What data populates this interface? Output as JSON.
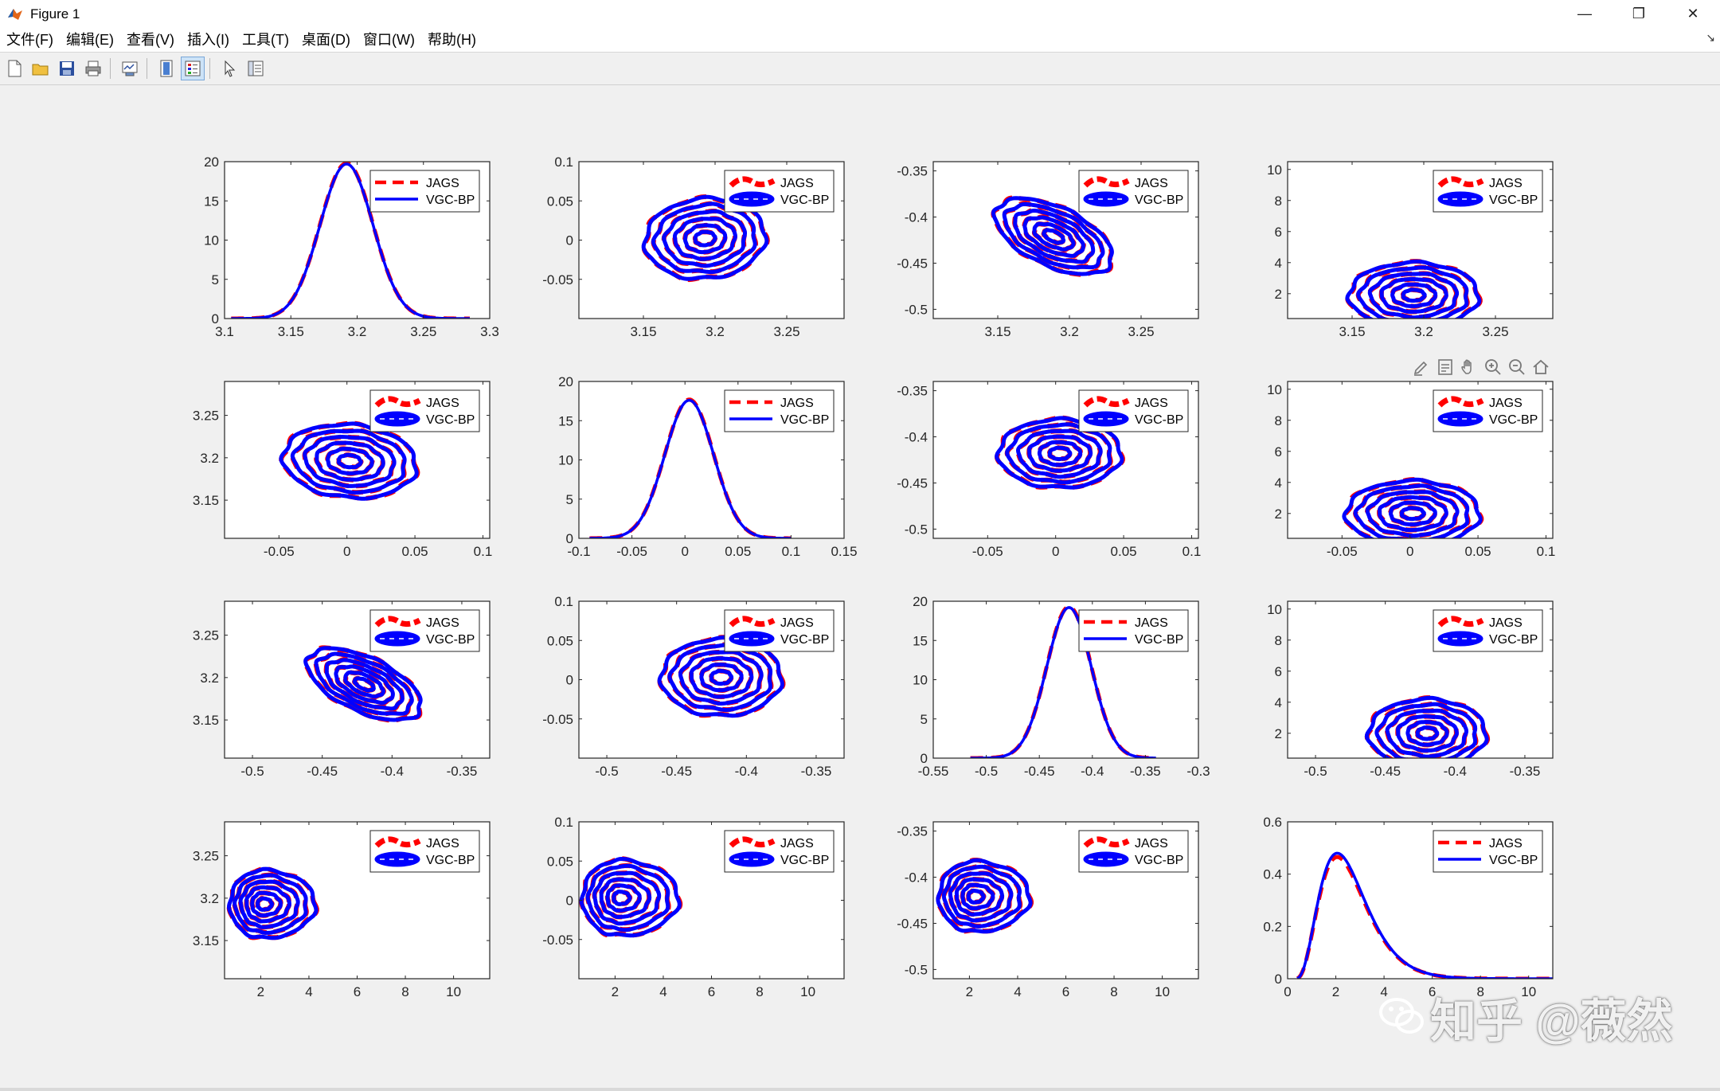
{
  "window": {
    "title": "Figure 1",
    "minimize_glyph": "—",
    "maximize_glyph": "❐",
    "close_glyph": "✕"
  },
  "menu": {
    "items": [
      "文件(F)",
      "编辑(E)",
      "查看(V)",
      "插入(I)",
      "工具(T)",
      "桌面(D)",
      "窗口(W)",
      "帮助(H)"
    ],
    "dock_glyph": "↘"
  },
  "toolbar": {
    "buttons": [
      "new-figure-icon",
      "open-file-icon",
      "save-icon",
      "print-icon",
      "link-plot-icon",
      "colorbar-icon",
      "legend-icon",
      "pointer-icon",
      "property-inspector-icon"
    ]
  },
  "axes_toolbar": {
    "buttons": [
      "brush-icon",
      "datatip-icon",
      "pan-icon",
      "zoom-in-icon",
      "zoom-out-icon",
      "home-icon"
    ]
  },
  "watermark": {
    "text": "知乎 @薇然"
  },
  "colors": {
    "jags": "#ff0000",
    "vgc_bp": "#0000ff",
    "axes_bg": "#ffffff",
    "figure_bg": "#f0f0f0"
  },
  "chart_data": [
    {
      "type": "line",
      "title": "",
      "xlabel": "",
      "ylabel": "",
      "xlim": [
        3.1,
        3.3
      ],
      "ylim": [
        0,
        20
      ],
      "xticks": [
        3.1,
        3.15,
        3.2,
        3.25,
        3.3
      ],
      "yticks": [
        0,
        5,
        10,
        15,
        20
      ],
      "xticklabels": [
        "3.1",
        "3.15",
        "3.2",
        "3.25",
        "3.3"
      ],
      "yticklabels": [
        "0",
        "5",
        "10",
        "15",
        "20"
      ],
      "density": {
        "mean": 3.192,
        "sd": 0.02,
        "peak": 19.7,
        "x_range": [
          3.105,
          3.285
        ]
      },
      "legend": {
        "location": "top-right",
        "style": "line",
        "entries": [
          "JAGS",
          "VGC-BP"
        ]
      },
      "series": [
        {
          "name": "JAGS",
          "style": "dashed"
        },
        {
          "name": "VGC-BP",
          "style": "solid"
        }
      ]
    },
    {
      "type": "line",
      "title": "",
      "xlabel": "",
      "ylabel": "",
      "xlim": [
        3.105,
        3.29
      ],
      "ylim": [
        -0.1,
        0.1
      ],
      "xticks": [
        3.15,
        3.2,
        3.25
      ],
      "yticks": [
        -0.05,
        0,
        0.05,
        0.1
      ],
      "xticklabels": [
        "3.15",
        "3.2",
        "3.25"
      ],
      "yticklabels": [
        "-0.05",
        "0",
        "0.05",
        "0.1"
      ],
      "contour": {
        "center": [
          3.193,
          0.002
        ],
        "radii": [
          0.042,
          0.051
        ],
        "angle_deg": -5,
        "levels": 6
      },
      "legend": {
        "location": "top-right",
        "style": "contour",
        "entries": [
          "JAGS",
          "VGC-BP"
        ]
      },
      "series": [
        {
          "name": "JAGS",
          "style": "dashed"
        },
        {
          "name": "VGC-BP",
          "style": "solid"
        }
      ]
    },
    {
      "type": "line",
      "title": "",
      "xlabel": "",
      "ylabel": "",
      "xlim": [
        3.105,
        3.29
      ],
      "ylim": [
        -0.51,
        -0.34
      ],
      "xticks": [
        3.15,
        3.2,
        3.25
      ],
      "yticks": [
        -0.35,
        -0.4,
        -0.45,
        -0.5
      ],
      "xticklabels": [
        "3.15",
        "3.2",
        "3.25"
      ],
      "yticklabels": [
        "-0.35",
        "-0.4",
        "-0.45",
        "-0.5"
      ],
      "contour": {
        "center": [
          3.189,
          -0.421
        ],
        "radii": [
          0.044,
          0.032
        ],
        "angle_deg": 25,
        "levels": 6
      },
      "legend": {
        "location": "top-right",
        "style": "contour",
        "entries": [
          "JAGS",
          "VGC-BP"
        ]
      },
      "series": [
        {
          "name": "JAGS",
          "style": "dashed"
        },
        {
          "name": "VGC-BP",
          "style": "solid"
        }
      ]
    },
    {
      "type": "line",
      "title": "",
      "xlabel": "",
      "ylabel": "",
      "xlim": [
        3.105,
        3.29
      ],
      "ylim": [
        0.4,
        10.5
      ],
      "xticks": [
        3.15,
        3.2,
        3.25
      ],
      "yticks": [
        2,
        4,
        6,
        8,
        10
      ],
      "xticklabels": [
        "3.15",
        "3.2",
        "3.25"
      ],
      "yticklabels": [
        "2",
        "4",
        "6",
        "8",
        "10"
      ],
      "contour": {
        "center": [
          3.193,
          1.9
        ],
        "radii": [
          0.045,
          2.1
        ],
        "angle_deg": 0,
        "levels": 6
      },
      "legend": {
        "location": "top-right",
        "style": "contour",
        "entries": [
          "JAGS",
          "VGC-BP"
        ]
      },
      "series": [
        {
          "name": "JAGS",
          "style": "dashed"
        },
        {
          "name": "VGC-BP",
          "style": "solid"
        }
      ]
    },
    {
      "type": "line",
      "title": "",
      "xlabel": "",
      "ylabel": "",
      "xlim": [
        -0.09,
        0.105
      ],
      "ylim": [
        3.105,
        3.29
      ],
      "xticks": [
        -0.05,
        0,
        0.05,
        0.1
      ],
      "yticks": [
        3.15,
        3.2,
        3.25
      ],
      "xticklabels": [
        "-0.05",
        "0",
        "0.05",
        "0.1"
      ],
      "yticklabels": [
        "3.15",
        "3.2",
        "3.25"
      ],
      "contour": {
        "center": [
          0.002,
          3.196
        ],
        "radii": [
          0.049,
          0.043
        ],
        "angle_deg": 5,
        "levels": 6
      },
      "legend": {
        "location": "top-right",
        "style": "contour",
        "entries": [
          "JAGS",
          "VGC-BP"
        ]
      },
      "series": [
        {
          "name": "JAGS",
          "style": "dashed"
        },
        {
          "name": "VGC-BP",
          "style": "solid"
        }
      ]
    },
    {
      "type": "line",
      "title": "",
      "xlabel": "",
      "ylabel": "",
      "xlim": [
        -0.1,
        0.15
      ],
      "ylim": [
        0,
        20
      ],
      "xticks": [
        -0.1,
        -0.05,
        0,
        0.05,
        0.1,
        0.15
      ],
      "yticks": [
        0,
        5,
        10,
        15,
        20
      ],
      "xticklabels": [
        "-0.1",
        "-0.05",
        "0",
        "0.05",
        "0.1",
        "0.15"
      ],
      "yticklabels": [
        "0",
        "5",
        "10",
        "15",
        "20"
      ],
      "density": {
        "mean": 0.004,
        "sd": 0.023,
        "peak": 17.6,
        "x_range": [
          -0.09,
          0.1
        ]
      },
      "legend": {
        "location": "top-right",
        "style": "line",
        "entries": [
          "JAGS",
          "VGC-BP"
        ]
      },
      "series": [
        {
          "name": "JAGS",
          "style": "dashed"
        },
        {
          "name": "VGC-BP",
          "style": "solid"
        }
      ]
    },
    {
      "type": "line",
      "title": "",
      "xlabel": "",
      "ylabel": "",
      "xlim": [
        -0.09,
        0.105
      ],
      "ylim": [
        -0.51,
        -0.34
      ],
      "xticks": [
        -0.05,
        0,
        0.05,
        0.1
      ],
      "yticks": [
        -0.35,
        -0.4,
        -0.45,
        -0.5
      ],
      "xticklabels": [
        "-0.05",
        "0",
        "0.05",
        "0.1"
      ],
      "yticklabels": [
        "-0.35",
        "-0.4",
        "-0.45",
        "-0.5"
      ],
      "contour": {
        "center": [
          0.003,
          -0.418
        ],
        "radii": [
          0.045,
          0.037
        ],
        "angle_deg": 0,
        "levels": 6
      },
      "legend": {
        "location": "top-right",
        "style": "contour",
        "entries": [
          "JAGS",
          "VGC-BP"
        ]
      },
      "series": [
        {
          "name": "JAGS",
          "style": "dashed"
        },
        {
          "name": "VGC-BP",
          "style": "solid"
        }
      ]
    },
    {
      "type": "line",
      "title": "",
      "xlabel": "",
      "ylabel": "",
      "xlim": [
        -0.09,
        0.105
      ],
      "ylim": [
        0.4,
        10.5
      ],
      "xticks": [
        -0.05,
        0,
        0.05,
        0.1
      ],
      "yticks": [
        2,
        4,
        6,
        8,
        10
      ],
      "xticklabels": [
        "-0.05",
        "0",
        "0.05",
        "0.1"
      ],
      "yticklabels": [
        "2",
        "4",
        "6",
        "8",
        "10"
      ],
      "contour": {
        "center": [
          0.002,
          2.0
        ],
        "radii": [
          0.049,
          2.1
        ],
        "angle_deg": 0,
        "levels": 6
      },
      "legend": {
        "location": "top-right",
        "style": "contour",
        "entries": [
          "JAGS",
          "VGC-BP"
        ]
      },
      "series": [
        {
          "name": "JAGS",
          "style": "dashed"
        },
        {
          "name": "VGC-BP",
          "style": "solid"
        }
      ]
    },
    {
      "type": "line",
      "title": "",
      "xlabel": "",
      "ylabel": "",
      "xlim": [
        -0.52,
        -0.33
      ],
      "ylim": [
        3.105,
        3.29
      ],
      "xticks": [
        -0.5,
        -0.45,
        -0.4,
        -0.35
      ],
      "yticks": [
        3.15,
        3.2,
        3.25
      ],
      "xticklabels": [
        "-0.5",
        "-0.45",
        "-0.4",
        "-0.35"
      ],
      "yticklabels": [
        "3.15",
        "3.2",
        "3.25"
      ],
      "contour": {
        "center": [
          -0.42,
          3.192
        ],
        "radii": [
          0.044,
          0.032
        ],
        "angle_deg": 25,
        "levels": 6
      },
      "legend": {
        "location": "top-right",
        "style": "contour",
        "entries": [
          "JAGS",
          "VGC-BP"
        ]
      },
      "series": [
        {
          "name": "JAGS",
          "style": "dashed"
        },
        {
          "name": "VGC-BP",
          "style": "solid"
        }
      ]
    },
    {
      "type": "line",
      "title": "",
      "xlabel": "",
      "ylabel": "",
      "xlim": [
        -0.52,
        -0.33
      ],
      "ylim": [
        -0.1,
        0.1
      ],
      "xticks": [
        -0.5,
        -0.45,
        -0.4,
        -0.35
      ],
      "yticks": [
        -0.05,
        0,
        0.05,
        0.1
      ],
      "xticklabels": [
        "-0.5",
        "-0.45",
        "-0.4",
        "-0.35"
      ],
      "yticklabels": [
        "-0.05",
        "0",
        "0.05",
        "0.1"
      ],
      "contour": {
        "center": [
          -0.418,
          0.003
        ],
        "radii": [
          0.043,
          0.049
        ],
        "angle_deg": 0,
        "levels": 6
      },
      "legend": {
        "location": "top-right",
        "style": "contour",
        "entries": [
          "JAGS",
          "VGC-BP"
        ]
      },
      "series": [
        {
          "name": "JAGS",
          "style": "dashed"
        },
        {
          "name": "VGC-BP",
          "style": "solid"
        }
      ]
    },
    {
      "type": "line",
      "title": "",
      "xlabel": "",
      "ylabel": "",
      "xlim": [
        -0.55,
        -0.3
      ],
      "ylim": [
        0,
        20
      ],
      "xticks": [
        -0.55,
        -0.5,
        -0.45,
        -0.4,
        -0.35,
        -0.3
      ],
      "yticks": [
        0,
        5,
        10,
        15,
        20
      ],
      "xticklabels": [
        "-0.55",
        "-0.5",
        "-0.45",
        "-0.4",
        "-0.35",
        "-0.3"
      ],
      "yticklabels": [
        "0",
        "5",
        "10",
        "15",
        "20"
      ],
      "density": {
        "mean": -0.422,
        "sd": 0.021,
        "peak": 19.2,
        "x_range": [
          -0.515,
          -0.34
        ]
      },
      "legend": {
        "location": "top-right",
        "style": "line",
        "entries": [
          "JAGS",
          "VGC-BP"
        ]
      },
      "series": [
        {
          "name": "JAGS",
          "style": "dashed"
        },
        {
          "name": "VGC-BP",
          "style": "solid"
        }
      ]
    },
    {
      "type": "line",
      "title": "",
      "xlabel": "",
      "ylabel": "",
      "xlim": [
        -0.52,
        -0.33
      ],
      "ylim": [
        0.4,
        10.5
      ],
      "xticks": [
        -0.5,
        -0.45,
        -0.4,
        -0.35
      ],
      "yticks": [
        2,
        4,
        6,
        8,
        10
      ],
      "xticklabels": [
        "-0.5",
        "-0.45",
        "-0.4",
        "-0.35"
      ],
      "yticklabels": [
        "2",
        "4",
        "6",
        "8",
        "10"
      ],
      "contour": {
        "center": [
          -0.42,
          2.0
        ],
        "radii": [
          0.042,
          2.2
        ],
        "angle_deg": 0,
        "levels": 6
      },
      "legend": {
        "location": "top-right",
        "style": "contour",
        "entries": [
          "JAGS",
          "VGC-BP"
        ]
      },
      "series": [
        {
          "name": "JAGS",
          "style": "dashed"
        },
        {
          "name": "VGC-BP",
          "style": "solid"
        }
      ]
    },
    {
      "type": "line",
      "title": "",
      "xlabel": "",
      "ylabel": "",
      "xlim": [
        0.5,
        11.5
      ],
      "ylim": [
        3.105,
        3.29
      ],
      "xticks": [
        2,
        4,
        6,
        8,
        10
      ],
      "yticks": [
        3.15,
        3.2,
        3.25
      ],
      "xticklabels": [
        "2",
        "4",
        "6",
        "8",
        "10"
      ],
      "yticklabels": [
        "3.15",
        "3.2",
        "3.25"
      ],
      "contour": {
        "center": [
          2.1,
          3.193
        ],
        "radii": [
          1.6,
          0.04
        ],
        "angle_deg": 0,
        "levels": 6,
        "skew": 0.35
      },
      "legend": {
        "location": "top-right",
        "style": "contour",
        "entries": [
          "JAGS",
          "VGC-BP"
        ]
      },
      "series": [
        {
          "name": "JAGS",
          "style": "dashed"
        },
        {
          "name": "VGC-BP",
          "style": "solid"
        }
      ]
    },
    {
      "type": "line",
      "title": "",
      "xlabel": "",
      "ylabel": "",
      "xlim": [
        0.5,
        11.5
      ],
      "ylim": [
        -0.1,
        0.1
      ],
      "xticks": [
        2,
        4,
        6,
        8,
        10
      ],
      "yticks": [
        -0.05,
        0,
        0.05,
        0.1
      ],
      "xticklabels": [
        "2",
        "4",
        "6",
        "8",
        "10"
      ],
      "yticklabels": [
        "-0.05",
        "0",
        "0.05",
        "0.1"
      ],
      "contour": {
        "center": [
          2.2,
          0.003
        ],
        "radii": [
          1.8,
          0.048
        ],
        "angle_deg": 0,
        "levels": 6,
        "skew": 0.35
      },
      "legend": {
        "location": "top-right",
        "style": "contour",
        "entries": [
          "JAGS",
          "VGC-BP"
        ]
      },
      "series": [
        {
          "name": "JAGS",
          "style": "dashed"
        },
        {
          "name": "VGC-BP",
          "style": "solid"
        }
      ]
    },
    {
      "type": "line",
      "title": "",
      "xlabel": "",
      "ylabel": "",
      "xlim": [
        0.5,
        11.5
      ],
      "ylim": [
        -0.51,
        -0.34
      ],
      "xticks": [
        2,
        4,
        6,
        8,
        10
      ],
      "yticks": [
        -0.35,
        -0.4,
        -0.45,
        -0.5
      ],
      "xticklabels": [
        "2",
        "4",
        "6",
        "8",
        "10"
      ],
      "yticklabels": [
        "-0.35",
        "-0.4",
        "-0.45",
        "-0.5"
      ],
      "contour": {
        "center": [
          2.2,
          -0.421
        ],
        "radii": [
          1.7,
          0.038
        ],
        "angle_deg": 0,
        "levels": 6,
        "skew": 0.35
      },
      "legend": {
        "location": "top-right",
        "style": "contour",
        "entries": [
          "JAGS",
          "VGC-BP"
        ]
      },
      "series": [
        {
          "name": "JAGS",
          "style": "dashed"
        },
        {
          "name": "VGC-BP",
          "style": "solid"
        }
      ]
    },
    {
      "type": "line",
      "title": "",
      "xlabel": "",
      "ylabel": "",
      "xlim": [
        0,
        11
      ],
      "ylim": [
        0,
        0.6
      ],
      "xticks": [
        0,
        2,
        4,
        6,
        8,
        10
      ],
      "yticks": [
        0,
        0.2,
        0.4,
        0.6
      ],
      "xticklabels": [
        "0",
        "2",
        "4",
        "6",
        "8",
        "10"
      ],
      "yticklabels": [
        "0",
        "0.2",
        "0.4",
        "0.6"
      ],
      "density": {
        "kind": "gamma",
        "shape": 4.2,
        "scale": 0.55,
        "peak": 0.48,
        "x_range": [
          0.4,
          11
        ]
      },
      "legend": {
        "location": "top-right",
        "style": "line",
        "entries": [
          "JAGS",
          "VGC-BP"
        ]
      },
      "series": [
        {
          "name": "JAGS",
          "style": "dashed"
        },
        {
          "name": "VGC-BP",
          "style": "solid"
        }
      ]
    }
  ]
}
